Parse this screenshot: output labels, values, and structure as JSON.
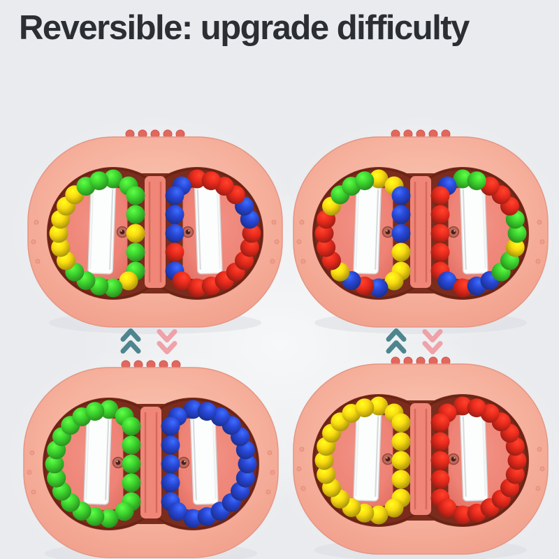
{
  "title": "Reversible: upgrade difficulty",
  "palette": {
    "background": "#e9ebee",
    "body_pink": "#f5b09c",
    "rotor_salmon": "#ee8376",
    "bridge_salmon": "#ef8678",
    "channel_dark": "#7b2c1c",
    "stud_red": "#e2685d",
    "tab_red": "#dd6156",
    "window_white": "#fcfdfd",
    "screw_dark": "#49201a",
    "arrow_teal": "#3d7a85",
    "arrow_pink": "#f09aa0",
    "title_color": "#2b2e33",
    "beads": {
      "green": "#3ed62f",
      "yellow": "#fadb12",
      "red": "#ea2b1d",
      "blue": "#2847d6"
    }
  },
  "divider": {
    "left_group": [
      "double-chevron-up",
      "double-chevron-down"
    ],
    "right_group": [
      "double-chevron-up",
      "double-chevron-down"
    ]
  },
  "toys": [
    {
      "id": "top-left",
      "state": "scrambled",
      "rings": {
        "left": [
          "green",
          "green",
          "green",
          "green",
          "yellow",
          "green",
          "green",
          "yellow",
          "green",
          "green",
          "green",
          "green",
          "yellow",
          "yellow",
          "yellow",
          "yellow",
          "yellow",
          "yellow",
          "green",
          "green"
        ],
        "right": [
          "red",
          "red",
          "red",
          "red",
          "blue",
          "blue",
          "red",
          "red",
          "red",
          "red",
          "red",
          "red",
          "red",
          "red",
          "blue",
          "red",
          "blue",
          "blue",
          "blue",
          "blue"
        ]
      }
    },
    {
      "id": "top-right",
      "state": "scrambled",
      "rings": {
        "left": [
          "yellow",
          "yellow",
          "blue",
          "blue",
          "blue",
          "yellow",
          "yellow",
          "yellow",
          "blue",
          "red",
          "blue",
          "yellow",
          "red",
          "red",
          "red",
          "red",
          "yellow",
          "green",
          "green",
          "green"
        ],
        "right": [
          "green",
          "green",
          "red",
          "red",
          "red",
          "green",
          "green",
          "yellow",
          "green",
          "green",
          "blue",
          "blue",
          "red",
          "blue",
          "red",
          "red",
          "red",
          "red",
          "red",
          "blue"
        ]
      }
    },
    {
      "id": "bottom-left",
      "state": "solved",
      "rings": {
        "left": [
          "green",
          "green",
          "green",
          "green",
          "green",
          "green",
          "green",
          "green",
          "green",
          "green",
          "green",
          "green",
          "green",
          "green",
          "green",
          "green",
          "green",
          "green",
          "green",
          "green"
        ],
        "right": [
          "blue",
          "blue",
          "blue",
          "blue",
          "blue",
          "blue",
          "blue",
          "blue",
          "blue",
          "blue",
          "blue",
          "blue",
          "blue",
          "blue",
          "blue",
          "blue",
          "blue",
          "blue",
          "blue",
          "blue"
        ]
      }
    },
    {
      "id": "bottom-right",
      "state": "solved",
      "rings": {
        "left": [
          "yellow",
          "yellow",
          "yellow",
          "yellow",
          "yellow",
          "yellow",
          "yellow",
          "yellow",
          "yellow",
          "yellow",
          "yellow",
          "yellow",
          "yellow",
          "yellow",
          "yellow",
          "yellow",
          "yellow",
          "yellow",
          "yellow",
          "yellow"
        ],
        "right": [
          "red",
          "red",
          "red",
          "red",
          "red",
          "red",
          "red",
          "red",
          "red",
          "red",
          "red",
          "red",
          "red",
          "red",
          "red",
          "red",
          "red",
          "red",
          "red",
          "red"
        ]
      }
    }
  ]
}
